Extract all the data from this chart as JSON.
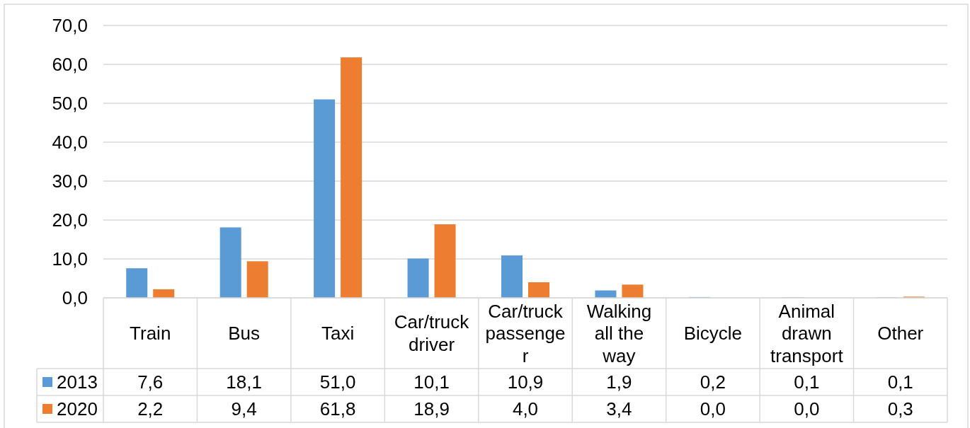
{
  "chart_data": {
    "type": "bar",
    "categories": [
      "Train",
      "Bus",
      "Taxi",
      "Car/truck driver",
      "Car/truck passenger",
      "Walking all the way",
      "Bicycle",
      "Animal drawn transport",
      "Other"
    ],
    "series": [
      {
        "name": "2013",
        "color": "#5b9bd5",
        "values": [
          7.6,
          18.1,
          51.0,
          10.1,
          10.9,
          1.9,
          0.2,
          0.1,
          0.1
        ],
        "value_labels": [
          "7,6",
          "18,1",
          "51,0",
          "10,1",
          "10,9",
          "1,9",
          "0,2",
          "0,1",
          "0,1"
        ]
      },
      {
        "name": "2020",
        "color": "#ed7d31",
        "values": [
          2.2,
          9.4,
          61.8,
          18.9,
          4.0,
          3.4,
          0.0,
          0.0,
          0.3
        ],
        "value_labels": [
          "2,2",
          "9,4",
          "61,8",
          "18,9",
          "4,0",
          "3,4",
          "0,0",
          "0,0",
          "0,3"
        ]
      }
    ],
    "ylim": [
      0,
      70
    ],
    "yticks": [
      {
        "value": 0,
        "label": "0,0"
      },
      {
        "value": 10,
        "label": "10,0"
      },
      {
        "value": 20,
        "label": "20,0"
      },
      {
        "value": 30,
        "label": "30,0"
      },
      {
        "value": 40,
        "label": "40,0"
      },
      {
        "value": 50,
        "label": "50,0"
      },
      {
        "value": 60,
        "label": "60,0"
      },
      {
        "value": 70,
        "label": "70,0"
      }
    ],
    "grid": "y",
    "legend": "bottom"
  }
}
